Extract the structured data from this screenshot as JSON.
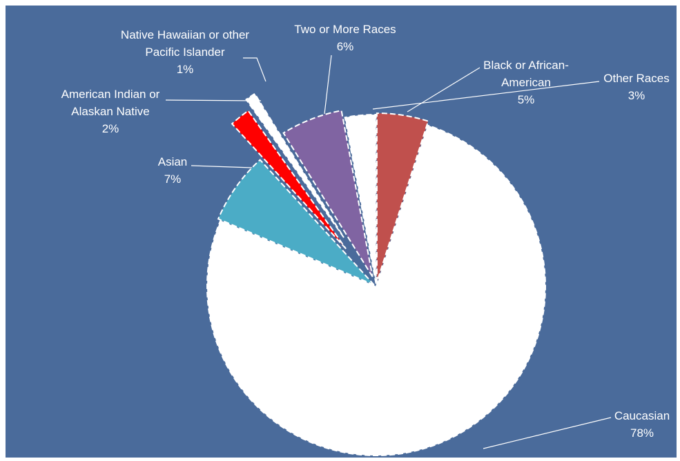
{
  "chart_data": {
    "type": "pie",
    "categories": [
      "Black or African-American",
      "Caucasian",
      "Asian",
      "American Indian or Alaskan Native",
      "Native Hawaiian or other Pacific Islander",
      "Two or More Races",
      "Other Races"
    ],
    "values": [
      5,
      78,
      7,
      2,
      1,
      6,
      3
    ],
    "value_labels": [
      "5%",
      "78%",
      "7%",
      "2%",
      "1%",
      "6%",
      "3%"
    ],
    "colors": [
      "#c0504d",
      "#ffffff",
      "#4bacc6",
      "#ff0000",
      "#ffffff",
      "#8064a2",
      "#ffffff"
    ]
  }
}
